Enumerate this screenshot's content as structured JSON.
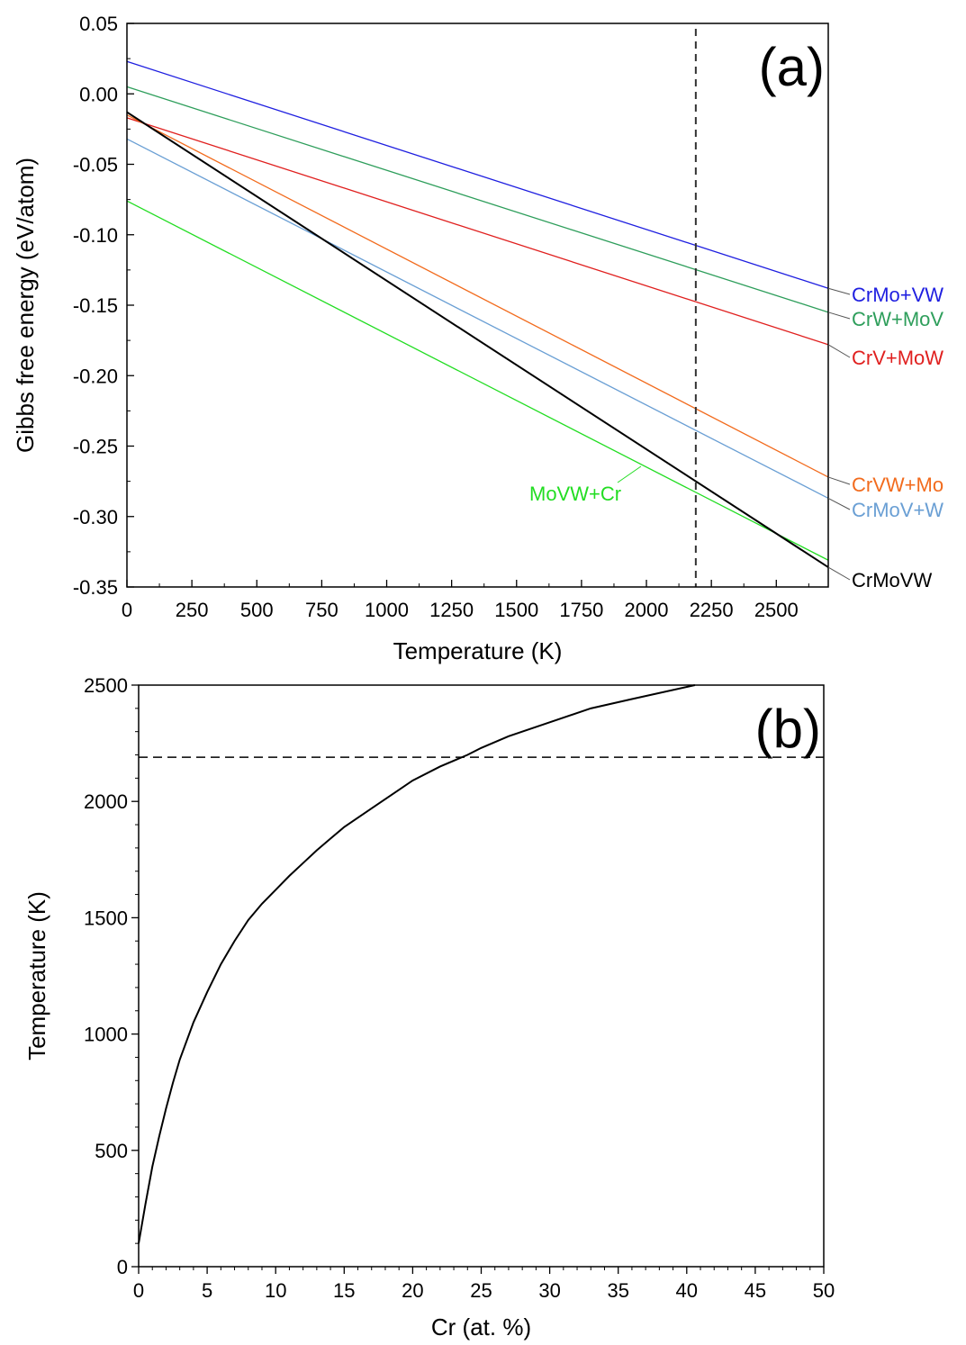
{
  "chart_data": [
    {
      "type": "line",
      "panel_label": "(a)",
      "xlabel": "Temperature (K)",
      "ylabel": "Gibbs free energy (eV/atom)",
      "xlim": [
        0,
        2700
      ],
      "ylim": [
        -0.35,
        0.05
      ],
      "x_ticks": [
        0,
        250,
        500,
        750,
        1000,
        1250,
        1500,
        1750,
        2000,
        2250,
        2500
      ],
      "y_ticks": [
        0.05,
        0.0,
        -0.05,
        -0.1,
        -0.15,
        -0.2,
        -0.25,
        -0.3,
        -0.35
      ],
      "y_tick_labels": [
        "0.05",
        "0.00",
        "-0.05",
        "-0.10",
        "-0.15",
        "-0.20",
        "-0.25",
        "-0.30",
        "-0.35"
      ],
      "vline_x": 2190,
      "grid": false,
      "series": [
        {
          "name": "CrMo+VW",
          "color": "#1f1fe0",
          "x": [
            0,
            2700
          ],
          "values": [
            0.023,
            -0.138
          ]
        },
        {
          "name": "CrW+MoV",
          "color": "#2e9e5b",
          "x": [
            0,
            2700
          ],
          "values": [
            0.005,
            -0.155
          ]
        },
        {
          "name": "CrV+MoW",
          "color": "#e0201f",
          "x": [
            0,
            2700
          ],
          "values": [
            -0.017,
            -0.178
          ]
        },
        {
          "name": "CrVW+Mo",
          "color": "#f26b1d",
          "x": [
            0,
            2700
          ],
          "values": [
            -0.015,
            -0.272
          ]
        },
        {
          "name": "CrMoV+W",
          "color": "#6a9fd4",
          "x": [
            0,
            2700
          ],
          "values": [
            -0.032,
            -0.287
          ]
        },
        {
          "name": "MoVW+Cr",
          "color": "#22dd22",
          "x": [
            0,
            2700
          ],
          "values": [
            -0.076,
            -0.331
          ]
        },
        {
          "name": "CrMoVW",
          "color": "#000000",
          "x": [
            0,
            2700
          ],
          "values": [
            -0.013,
            -0.336
          ]
        }
      ]
    },
    {
      "type": "line",
      "panel_label": "(b)",
      "xlabel": "Cr (at. %)",
      "ylabel": "Temperature (K)",
      "xlim": [
        0,
        50
      ],
      "ylim": [
        0,
        2500
      ],
      "x_ticks": [
        0,
        5,
        10,
        15,
        20,
        25,
        30,
        35,
        40,
        45,
        50
      ],
      "y_ticks": [
        0,
        500,
        1000,
        1500,
        2000,
        2500
      ],
      "hline_y": 2190,
      "grid": false,
      "series": [
        {
          "color": "#000000",
          "x": [
            0,
            0.5,
            1,
            1.5,
            2,
            2.5,
            3,
            4,
            5,
            6,
            7,
            8,
            9,
            10,
            11,
            12,
            13,
            14,
            15,
            17,
            19,
            20,
            22,
            24,
            25,
            27,
            30,
            33,
            36,
            40.6
          ],
          "values": [
            100,
            270,
            430,
            560,
            680,
            790,
            890,
            1050,
            1180,
            1300,
            1400,
            1490,
            1560,
            1620,
            1680,
            1735,
            1790,
            1840,
            1890,
            1970,
            2050,
            2090,
            2150,
            2200,
            2230,
            2280,
            2340,
            2400,
            2440,
            2500
          ]
        }
      ]
    }
  ]
}
